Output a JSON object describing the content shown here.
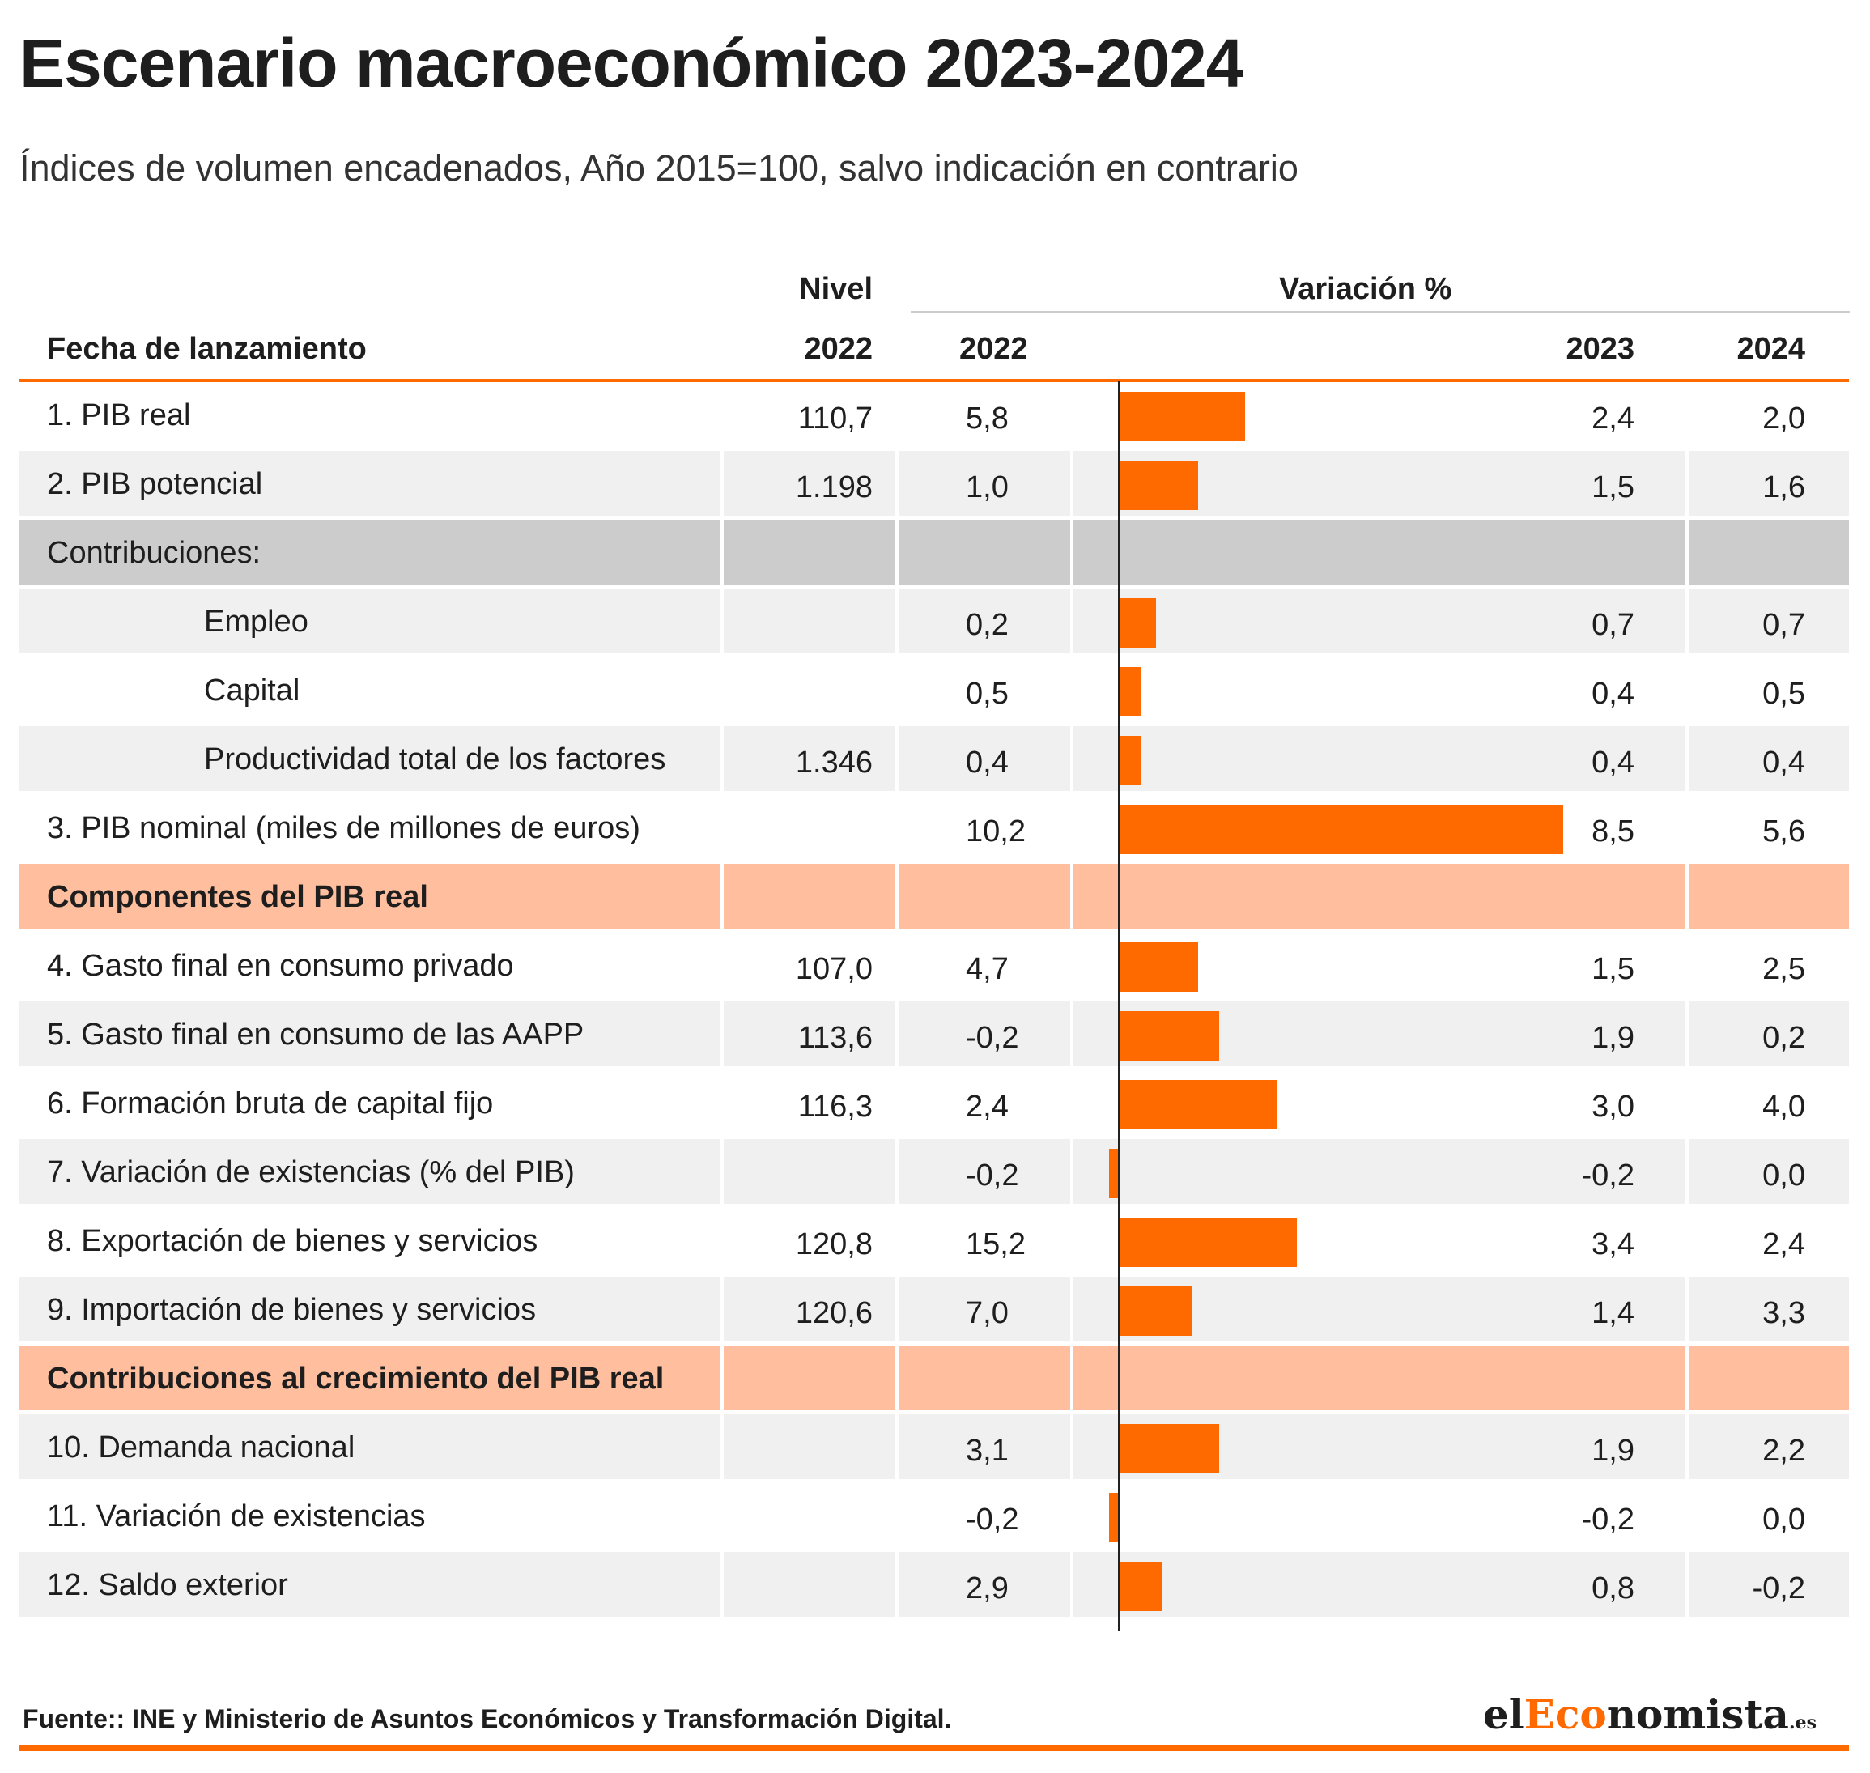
{
  "title": "Escenario macroeconómico 2023-2024",
  "subtitle": "Índices de volumen encadenados, Año 2015=100, salvo indicación en contrario",
  "header": {
    "row_label": "Fecha de lanzamiento",
    "nivel": "Nivel",
    "nivel_year": "2022",
    "variacion": "Variación %",
    "var_2022": "2022",
    "var_2023": "2023",
    "var_2024": "2024"
  },
  "colors": {
    "accent": "#ff6a00",
    "section_band": "#ffbf9f",
    "group_band": "#cccccc",
    "zebra": "#f0f0f0"
  },
  "chart_data": {
    "type": "table",
    "title": "Escenario macroeconómico 2023-2024",
    "subtitle": "Índices de volumen encadenados, Año 2015=100, salvo indicación en contrario",
    "columns": [
      "Fecha de lanzamiento",
      "Nivel 2022",
      "Variación % 2022",
      "2023",
      "2024"
    ],
    "bar_series": "2023",
    "bar_range": [
      -0.2,
      8.5
    ],
    "rows": [
      {
        "label": "1. PIB real",
        "kind": "row",
        "nivel": "110,7",
        "v2022": "5,8",
        "v2023": "2,4",
        "v2024": "2,0",
        "bar": 2.4
      },
      {
        "label": "2. PIB potencial",
        "kind": "row",
        "nivel": "1.198",
        "v2022": "1,0",
        "v2023": "1,5",
        "v2024": "1,6",
        "bar": 1.5
      },
      {
        "label": "Contribuciones:",
        "kind": "group"
      },
      {
        "label": "Empleo",
        "kind": "sub",
        "nivel": "",
        "v2022": "0,2",
        "v2023": "0,7",
        "v2024": "0,7",
        "bar": 0.7
      },
      {
        "label": "Capital",
        "kind": "sub",
        "nivel": "",
        "v2022": "0,5",
        "v2023": "0,4",
        "v2024": "0,5",
        "bar": 0.4
      },
      {
        "label": "Productividad total de los factores",
        "kind": "sub",
        "nivel": "1.346",
        "v2022": "0,4",
        "v2023": "0,4",
        "v2024": "0,4",
        "bar": 0.4
      },
      {
        "label": "3. PIB nominal (miles de millones de euros)",
        "kind": "row",
        "nivel": "",
        "v2022": "10,2",
        "v2023": "8,5",
        "v2024": "5,6",
        "bar": 8.5
      },
      {
        "label": "Componentes del PIB real",
        "kind": "section"
      },
      {
        "label": "4. Gasto final en consumo privado",
        "kind": "row",
        "nivel": "107,0",
        "v2022": "4,7",
        "v2023": "1,5",
        "v2024": "2,5",
        "bar": 1.5
      },
      {
        "label": "5. Gasto final en consumo de las AAPP",
        "kind": "row",
        "nivel": "113,6",
        "v2022": "-0,2",
        "v2023": "1,9",
        "v2024": "0,2",
        "bar": 1.9
      },
      {
        "label": "6. Formación bruta de capital fijo",
        "kind": "row",
        "nivel": "116,3",
        "v2022": "2,4",
        "v2023": "3,0",
        "v2024": "4,0",
        "bar": 3.0
      },
      {
        "label": "7. Variación de existencias (% del PIB)",
        "kind": "row",
        "nivel": "",
        "v2022": "-0,2",
        "v2023": "-0,2",
        "v2024": "0,0",
        "bar": -0.2
      },
      {
        "label": "8. Exportación de bienes y servicios",
        "kind": "row",
        "nivel": "120,8",
        "v2022": "15,2",
        "v2023": "3,4",
        "v2024": "2,4",
        "bar": 3.4
      },
      {
        "label": "9. Importación de bienes y servicios",
        "kind": "row",
        "nivel": "120,6",
        "v2022": "7,0",
        "v2023": "1,4",
        "v2024": "3,3",
        "bar": 1.4
      },
      {
        "label": "Contribuciones al crecimiento del PIB real",
        "kind": "section"
      },
      {
        "label": "10. Demanda nacional",
        "kind": "row",
        "nivel": "",
        "v2022": "3,1",
        "v2023": "1,9",
        "v2024": "2,2",
        "bar": 1.9
      },
      {
        "label": "11. Variación de existencias",
        "kind": "row",
        "nivel": "",
        "v2022": "-0,2",
        "v2023": "-0,2",
        "v2024": "0,0",
        "bar": -0.2
      },
      {
        "label": "12. Saldo exterior",
        "kind": "row",
        "nivel": "",
        "v2022": "2,9",
        "v2023": "0,8",
        "v2024": "-0,2",
        "bar": 0.8
      }
    ]
  },
  "source": "Fuente:: INE y Ministerio de Asuntos Económicos y Transformación Digital.",
  "logo": {
    "part1": "el",
    "part2": "Eco",
    "part3": "nomista",
    "tld": ".es"
  }
}
